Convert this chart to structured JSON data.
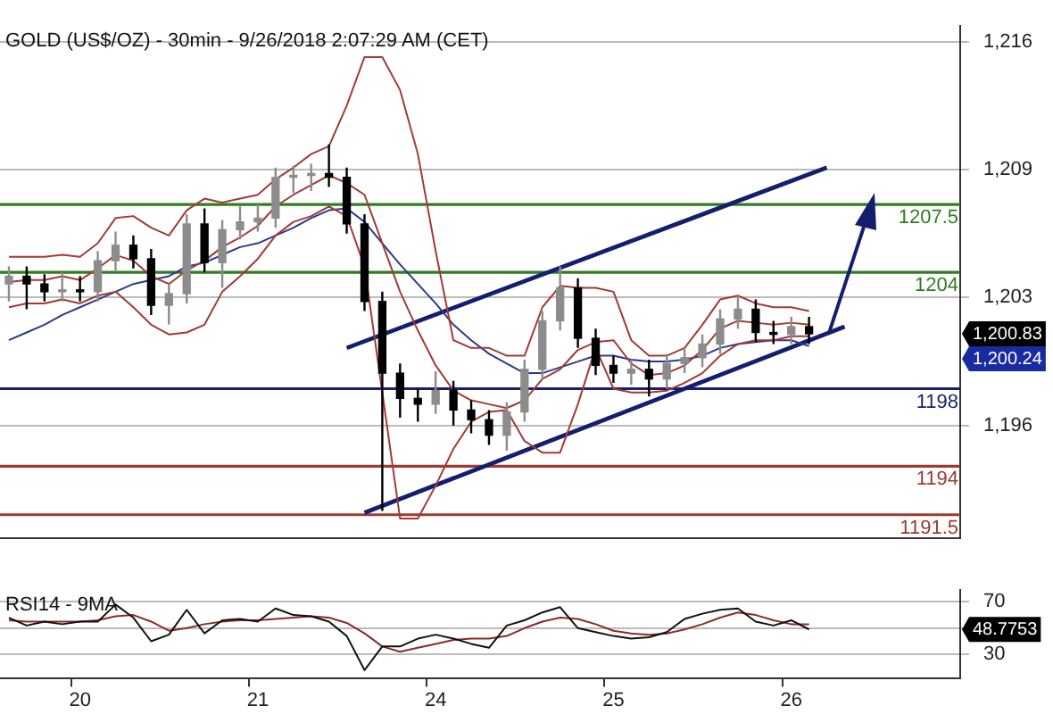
{
  "chart_data": [
    {
      "type": "candlestick",
      "title": "GOLD (US$/OZ) - 30min - 9/26/2018 2:07:29 AM (CET)",
      "categories": [
        null,
        null,
        null,
        null,
        "20",
        null,
        null,
        null,
        null,
        null,
        null,
        null,
        null,
        null,
        "21",
        null,
        null,
        null,
        null,
        null,
        null,
        null,
        null,
        null,
        "24",
        null,
        null,
        null,
        null,
        null,
        null,
        null,
        null,
        null,
        "25",
        null,
        null,
        null,
        null,
        null,
        null,
        null,
        null,
        null,
        "26",
        null,
        null,
        null,
        null,
        null,
        null,
        null,
        null,
        null
      ],
      "colors": [
        "#8c8c8c",
        "#000000",
        "#000000",
        "#8c8c8c",
        "#000000",
        "#8c8c8c",
        "#8c8c8c",
        "#000000",
        "#000000",
        "#8c8c8c",
        "#8c8c8c",
        "#000000",
        "#8c8c8c",
        "#8c8c8c",
        "#8c8c8c",
        "#8c8c8c",
        "#8c8c8c",
        "#8c8c8c",
        "#000000",
        "#000000",
        "#000000",
        "#000000",
        "#000000",
        "#000000",
        "#8c8c8c",
        "#000000",
        "#000000",
        "#000000",
        "#8c8c8c",
        "#8c8c8c",
        "#8c8c8c",
        "#8c8c8c",
        "#000000",
        "#000000",
        "#000000",
        "#8c8c8c",
        "#000000",
        "#8c8c8c",
        "#8c8c8c",
        "#8c8c8c",
        "#8c8c8c",
        "#8c8c8c",
        "#000000",
        "#000000",
        "#8c8c8c",
        "#000000",
        null,
        null,
        null,
        null,
        null,
        null,
        null,
        null
      ],
      "ohlc": [
        [
          1203.4,
          1204.3,
          1202.5,
          1203.8
        ],
        [
          1203.8,
          1204.3,
          1202.1,
          1203.4
        ],
        [
          1203.4,
          1203.9,
          1202.5,
          1203.0
        ],
        [
          1203.0,
          1204.0,
          1202.5,
          1203.1
        ],
        [
          1203.1,
          1203.8,
          1202.5,
          1203.0
        ],
        [
          1203.0,
          1205.1,
          1202.5,
          1204.6
        ],
        [
          1204.6,
          1206.1,
          1204.1,
          1205.4
        ],
        [
          1205.4,
          1205.9,
          1204.2,
          1204.7
        ],
        [
          1204.7,
          1205.2,
          1201.8,
          1202.3
        ],
        [
          1202.3,
          1203.4,
          1201.3,
          1202.9
        ],
        [
          1202.9,
          1207.0,
          1202.4,
          1206.5
        ],
        [
          1206.5,
          1207.3,
          1204.0,
          1204.5
        ],
        [
          1204.5,
          1206.7,
          1203.2,
          1206.2
        ],
        [
          1206.2,
          1207.4,
          1205.7,
          1206.6
        ],
        [
          1206.6,
          1207.5,
          1206.1,
          1206.8
        ],
        [
          1206.8,
          1209.4,
          1206.3,
          1208.9
        ],
        [
          1208.9,
          1209.5,
          1208.1,
          1209.0
        ],
        [
          1209.0,
          1209.6,
          1208.2,
          1209.1
        ],
        [
          1209.1,
          1210.6,
          1208.4,
          1208.9
        ],
        [
          1208.9,
          1209.4,
          1206.0,
          1206.5
        ],
        [
          1206.5,
          1207.0,
          1202.0,
          1202.5
        ],
        [
          1202.5,
          1203.0,
          1191.7,
          1198.8
        ],
        [
          1198.8,
          1199.3,
          1196.5,
          1197.5
        ],
        [
          1197.5,
          1198.0,
          1196.3,
          1197.2
        ],
        [
          1197.2,
          1198.9,
          1196.7,
          1197.9
        ],
        [
          1197.9,
          1198.4,
          1196.1,
          1196.9
        ],
        [
          1196.9,
          1197.4,
          1195.7,
          1196.4
        ],
        [
          1196.4,
          1196.9,
          1195.1,
          1195.6
        ],
        [
          1195.6,
          1197.3,
          1194.8,
          1196.8
        ],
        [
          1196.8,
          1199.5,
          1196.3,
          1199.0
        ],
        [
          1199.0,
          1202.0,
          1198.5,
          1201.5
        ],
        [
          1201.5,
          1204.3,
          1201.0,
          1203.2
        ],
        [
          1203.2,
          1203.7,
          1200.1,
          1200.6
        ],
        [
          1200.6,
          1201.1,
          1198.7,
          1199.2
        ],
        [
          1199.2,
          1199.7,
          1198.3,
          1198.8
        ],
        [
          1198.8,
          1199.5,
          1198.2,
          1199.0
        ],
        [
          1199.0,
          1199.5,
          1197.6,
          1198.5
        ],
        [
          1198.5,
          1199.8,
          1198.0,
          1199.3
        ],
        [
          1199.3,
          1200.1,
          1198.8,
          1199.6
        ],
        [
          1199.6,
          1200.8,
          1199.1,
          1200.3
        ],
        [
          1200.3,
          1202.1,
          1199.8,
          1201.6
        ],
        [
          1201.6,
          1202.8,
          1201.1,
          1202.1
        ],
        [
          1202.1,
          1202.6,
          1200.4,
          1200.9
        ],
        [
          1200.9,
          1201.5,
          1200.3,
          1200.8
        ],
        [
          1200.8,
          1201.7,
          1200.3,
          1201.2
        ],
        [
          1201.2,
          1201.7,
          1200.3,
          1200.83
        ],
        null,
        null,
        null,
        null,
        null,
        null,
        null,
        null
      ],
      "series": [
        {
          "type": "line",
          "color": "#a33a35",
          "values": [
            1204.8,
            1204.8,
            1204.8,
            1204.9,
            1204.8,
            1205.5,
            1206.8,
            1206.9,
            1206.3,
            1205.9,
            1207.2,
            1207.8,
            1207.6,
            1207.8,
            1208.0,
            1208.8,
            1209.4,
            1210.1,
            1210.5,
            1212.6,
            1215.1,
            1215.1,
            1213.4,
            1210.1,
            1205.1,
            1200.5,
            1200.1,
            1200.1,
            1199.7,
            1199.7,
            1202.2,
            1203.3,
            1203.2,
            1203.2,
            1203.0,
            1200.5,
            1199.7,
            1199.7,
            1200.1,
            1201.3,
            1202.6,
            1202.8,
            1202.4,
            1202.2,
            1202.2,
            1202.0,
            null,
            null,
            null,
            null,
            null,
            null,
            null,
            null
          ]
        },
        {
          "type": "line",
          "color": "#a33a35",
          "values": [
            1203.5,
            1203.6,
            1203.6,
            1203.8,
            1203.6,
            1204.2,
            1204.9,
            1204.6,
            1203.8,
            1203.4,
            1204.1,
            1204.6,
            1205.3,
            1205.8,
            1206.4,
            1207.4,
            1208.0,
            1208.5,
            1209.0,
            1208.6,
            1208.0,
            1205.5,
            1203.0,
            1201.0,
            1199.2,
            1197.9,
            1197.4,
            1197.2,
            1197.0,
            1197.4,
            1198.5,
            1199.0,
            1200.0,
            1200.4,
            1200.5,
            1199.3,
            1198.7,
            1198.8,
            1199.2,
            1200.0,
            1201.1,
            1201.5,
            1201.4,
            1201.3,
            1201.4,
            1201.3,
            null,
            null,
            null,
            null,
            null,
            null,
            null,
            null
          ]
        },
        {
          "type": "line",
          "color": "#a33a35",
          "values": [
            1202.2,
            1202.4,
            1202.4,
            1202.6,
            1202.4,
            1202.8,
            1203.0,
            1202.2,
            1201.3,
            1200.8,
            1200.9,
            1201.3,
            1203.0,
            1203.8,
            1204.7,
            1205.9,
            1206.6,
            1206.9,
            1207.4,
            1206.9,
            1204.3,
            null,
            1191.3,
            1191.3,
            1193.0,
            1194.9,
            1196.3,
            1196.8,
            1196.9,
            1195.3,
            1194.7,
            1194.7,
            1197.2,
            1200.1,
            1198.0,
            1197.8,
            1197.8,
            1197.9,
            1198.3,
            1198.8,
            1199.7,
            1200.3,
            1200.5,
            1200.5,
            1200.7,
            1200.7,
            null,
            null,
            null,
            null,
            null,
            null,
            null,
            null
          ]
        },
        {
          "type": "line",
          "color": "#2b3a8c",
          "values": [
            1200.5,
            1200.9,
            1201.3,
            1201.8,
            1202.2,
            1202.6,
            1203.0,
            1203.4,
            1203.6,
            1203.8,
            1204.3,
            1204.5,
            1204.9,
            1205.3,
            1205.5,
            1205.9,
            1206.3,
            1206.8,
            1207.2,
            1207.3,
            1206.6,
            1205.5,
            1204.4,
            1203.4,
            1202.4,
            1201.3,
            1200.5,
            1199.8,
            1199.3,
            1198.8,
            1198.8,
            1199.1,
            1199.4,
            1199.7,
            1199.7,
            1199.5,
            1199.4,
            1199.4,
            1199.5,
            1199.7,
            1200.1,
            1200.3,
            1200.4,
            1200.5,
            1200.5,
            1200.2,
            null,
            null,
            null,
            null,
            null,
            null,
            null,
            null
          ]
        },
        {
          "type": "line",
          "color": "#141e6e",
          "values": [
            null,
            null,
            null,
            null,
            null,
            null,
            null,
            null,
            null,
            null,
            null,
            null,
            null,
            null,
            null,
            null,
            null,
            null,
            null,
            1200.1,
            null,
            null,
            null,
            null,
            null,
            null,
            null,
            null,
            null,
            null,
            null,
            null,
            null,
            null,
            null,
            null,
            null,
            null,
            null,
            null,
            null,
            null,
            null,
            null,
            null,
            null,
            1209.4,
            null,
            null,
            null,
            null,
            null,
            null,
            null
          ]
        },
        {
          "type": "line",
          "color": "#141e6e",
          "values": [
            null,
            null,
            null,
            null,
            null,
            null,
            null,
            null,
            null,
            null,
            null,
            null,
            null,
            null,
            null,
            null,
            null,
            null,
            null,
            null,
            1191.6,
            null,
            null,
            null,
            null,
            null,
            null,
            null,
            null,
            null,
            null,
            null,
            null,
            null,
            null,
            null,
            null,
            null,
            null,
            null,
            null,
            null,
            null,
            null,
            null,
            null,
            null,
            1201.2,
            null,
            null,
            null,
            null,
            null,
            null
          ]
        }
      ],
      "ylim": [
        1190.3,
        1216.7
      ],
      "yticks": [
        {
          "value": 1196.1,
          "label": "1,196"
        },
        {
          "value": 1202.7,
          "label": "1,203"
        },
        {
          "value": 1209.3,
          "label": "1,209"
        },
        {
          "value": 1215.9,
          "label": "1,216"
        }
      ],
      "grid": "y",
      "tick_labels": "y",
      "legend": false,
      "ref_lines": [
        {
          "axis": "y",
          "value": 1207.5,
          "label": "1207.5",
          "color": "#2f7d22"
        },
        {
          "axis": "y",
          "value": 1204,
          "label": "1204",
          "color": "#2f7d22"
        },
        {
          "axis": "y",
          "value": 1198,
          "label": "1198",
          "color": "#1a1f6e"
        },
        {
          "axis": "y",
          "value": 1194,
          "label": "1194",
          "color": "#9c3a33"
        },
        {
          "axis": "y",
          "value": 1191.5,
          "label": "1191.5",
          "color": "#9c3a33"
        }
      ],
      "annotations": [
        "1,200.83",
        "1,200.24"
      ]
    },
    {
      "type": "line",
      "title": "RSI14 - 9MA",
      "categories": [
        null,
        null,
        null,
        null,
        "20",
        null,
        null,
        null,
        null,
        null,
        null,
        null,
        null,
        null,
        "21",
        null,
        null,
        null,
        null,
        null,
        null,
        null,
        null,
        null,
        "24",
        null,
        null,
        null,
        null,
        null,
        null,
        null,
        null,
        null,
        "25",
        null,
        null,
        null,
        null,
        null,
        null,
        null,
        null,
        null,
        "26",
        null,
        null,
        null,
        null,
        null,
        null,
        null,
        null,
        null
      ],
      "series": [
        {
          "color": "#111111",
          "values": [
            58,
            52,
            55,
            53,
            55,
            55,
            68,
            58,
            40,
            45,
            64,
            46,
            56,
            57,
            55,
            65,
            60,
            59,
            55,
            44,
            18,
            36,
            36,
            42,
            45,
            42,
            38,
            35,
            52,
            56,
            62,
            66,
            50,
            47,
            44,
            42,
            43,
            47,
            57,
            61,
            64,
            65,
            55,
            52,
            56,
            49,
            null,
            null,
            null,
            null,
            null,
            null,
            null,
            null
          ]
        },
        {
          "color": "#8b2b2b",
          "values": [
            56,
            55,
            55,
            55,
            55,
            56,
            59,
            60,
            55,
            48,
            50,
            53,
            55,
            56,
            56,
            57,
            58,
            59,
            58,
            54,
            46,
            36,
            32,
            35,
            38,
            41,
            42,
            42,
            44,
            50,
            55,
            58,
            57,
            53,
            48,
            46,
            45,
            46,
            49,
            53,
            58,
            62,
            60,
            56,
            53,
            53,
            null,
            null,
            null,
            null,
            null,
            null,
            null,
            null
          ]
        }
      ],
      "ylim": [
        12,
        79
      ],
      "yticks": [
        30,
        {
          "value": 50,
          "label": null
        },
        70
      ],
      "grid": "y",
      "legend": false,
      "annotations": [
        "48.7753"
      ]
    }
  ]
}
